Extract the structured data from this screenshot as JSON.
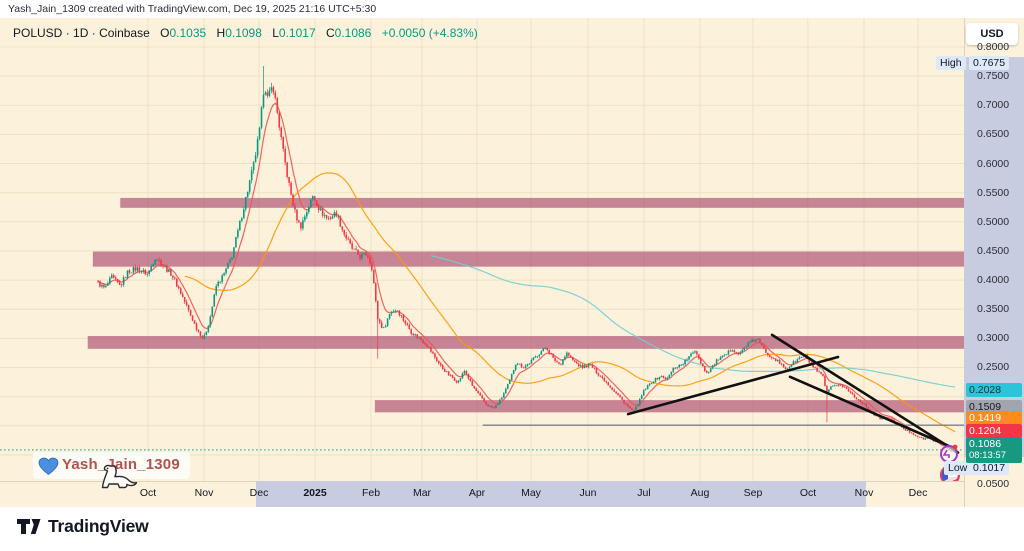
{
  "attribution": "Yash_Jain_1309 created with TradingView.com, Dec 19, 2025 21:16 UTC+5:30",
  "legend": {
    "symbol": "POLUSD",
    "dot": "·",
    "interval": "1D",
    "exchange": "Coinbase",
    "pairs": [
      {
        "k": "O",
        "v": "0.1035"
      },
      {
        "k": "H",
        "v": "0.1098"
      },
      {
        "k": "L",
        "v": "0.1017"
      },
      {
        "k": "C",
        "v": "0.1086"
      }
    ],
    "change": "+0.0050 (+4.83%)"
  },
  "currency_button": "USD",
  "price_axis": {
    "plain_ticks": [
      "0.8000",
      "0.7500",
      "0.7000",
      "0.6500",
      "0.6000",
      "0.5500",
      "0.5000",
      "0.4500",
      "0.4000",
      "0.3500",
      "0.3000",
      "0.2500",
      "0.0500"
    ],
    "high_badge": {
      "label": "High",
      "price": "0.7675"
    },
    "low_badge": {
      "label": "Low",
      "price": "0.1017"
    },
    "line_labels": [
      {
        "text": "0.2028",
        "bg": "#2bc4d9",
        "fg": "#07333a",
        "price": 0.2028
      },
      {
        "text": "0.1509",
        "bg": "#a2a5ad",
        "fg": "#16181d",
        "price": 0.1509
      },
      {
        "text": "0.1419",
        "bg": "#ff8c1a",
        "fg": "#ffffff",
        "price": 0.1419
      },
      {
        "text": "0.1204",
        "bg": "#f23645",
        "fg": "#ffffff",
        "price": 0.1204
      }
    ],
    "last_price_label": {
      "text": "0.1086",
      "countdown": "08:13:57",
      "bg": "#159980",
      "fg": "#ffffff",
      "price": 0.1086
    }
  },
  "watermark": "Yash_Jain_1309",
  "footer_logo": "TradingView",
  "chart_data": {
    "type": "candlestick",
    "symbol": "POLUSD",
    "timeframe": "1D",
    "exchange": "Coinbase",
    "ylim": [
      0.05,
      0.85
    ],
    "high": 0.7675,
    "low": 0.1017,
    "last_candle": {
      "open": 0.1035,
      "high": 0.1098,
      "low": 0.1017,
      "close": 0.1086
    },
    "months": [
      {
        "label": "Oct",
        "f": 0.0583
      },
      {
        "label": "Nov",
        "f": 0.1237
      },
      {
        "label": "Dec",
        "f": 0.1879
      },
      {
        "label": "2025",
        "f": 0.2532,
        "bold": true
      },
      {
        "label": "Feb",
        "f": 0.3185
      },
      {
        "label": "Mar",
        "f": 0.378
      },
      {
        "label": "Apr",
        "f": 0.4422
      },
      {
        "label": "May",
        "f": 0.5052
      },
      {
        "label": "Jun",
        "f": 0.5717
      },
      {
        "label": "Jul",
        "f": 0.6371
      },
      {
        "label": "Aug",
        "f": 0.7024
      },
      {
        "label": "Sep",
        "f": 0.7643
      },
      {
        "label": "Oct",
        "f": 0.8284
      },
      {
        "label": "Nov",
        "f": 0.8938
      },
      {
        "label": "Dec",
        "f": 0.9568
      }
    ],
    "close_keypoints": [
      [
        0.0,
        0.395
      ],
      [
        0.008,
        0.385
      ],
      [
        0.016,
        0.405
      ],
      [
        0.026,
        0.39
      ],
      [
        0.035,
        0.415
      ],
      [
        0.046,
        0.42
      ],
      [
        0.058,
        0.41
      ],
      [
        0.067,
        0.44
      ],
      [
        0.076,
        0.425
      ],
      [
        0.086,
        0.41
      ],
      [
        0.096,
        0.38
      ],
      [
        0.105,
        0.35
      ],
      [
        0.114,
        0.32
      ],
      [
        0.123,
        0.298
      ],
      [
        0.13,
        0.33
      ],
      [
        0.138,
        0.39
      ],
      [
        0.147,
        0.41
      ],
      [
        0.156,
        0.44
      ],
      [
        0.166,
        0.5
      ],
      [
        0.174,
        0.55
      ],
      [
        0.182,
        0.6
      ],
      [
        0.189,
        0.66
      ],
      [
        0.194,
        0.74
      ],
      [
        0.198,
        0.71
      ],
      [
        0.204,
        0.735
      ],
      [
        0.21,
        0.68
      ],
      [
        0.216,
        0.62
      ],
      [
        0.222,
        0.57
      ],
      [
        0.229,
        0.52
      ],
      [
        0.236,
        0.49
      ],
      [
        0.244,
        0.52
      ],
      [
        0.251,
        0.545
      ],
      [
        0.259,
        0.52
      ],
      [
        0.268,
        0.505
      ],
      [
        0.278,
        0.515
      ],
      [
        0.287,
        0.48
      ],
      [
        0.296,
        0.455
      ],
      [
        0.306,
        0.44
      ],
      [
        0.314,
        0.445
      ],
      [
        0.32,
        0.42
      ],
      [
        0.326,
        0.335
      ],
      [
        0.333,
        0.315
      ],
      [
        0.341,
        0.345
      ],
      [
        0.349,
        0.35
      ],
      [
        0.357,
        0.33
      ],
      [
        0.366,
        0.31
      ],
      [
        0.375,
        0.3
      ],
      [
        0.383,
        0.29
      ],
      [
        0.392,
        0.27
      ],
      [
        0.401,
        0.25
      ],
      [
        0.411,
        0.235
      ],
      [
        0.42,
        0.225
      ],
      [
        0.428,
        0.245
      ],
      [
        0.436,
        0.22
      ],
      [
        0.446,
        0.2
      ],
      [
        0.454,
        0.185
      ],
      [
        0.462,
        0.18
      ],
      [
        0.47,
        0.195
      ],
      [
        0.48,
        0.225
      ],
      [
        0.488,
        0.26
      ],
      [
        0.496,
        0.25
      ],
      [
        0.505,
        0.26
      ],
      [
        0.515,
        0.275
      ],
      [
        0.523,
        0.285
      ],
      [
        0.531,
        0.265
      ],
      [
        0.539,
        0.255
      ],
      [
        0.547,
        0.275
      ],
      [
        0.555,
        0.26
      ],
      [
        0.565,
        0.25
      ],
      [
        0.574,
        0.255
      ],
      [
        0.583,
        0.24
      ],
      [
        0.593,
        0.225
      ],
      [
        0.602,
        0.21
      ],
      [
        0.611,
        0.195
      ],
      [
        0.62,
        0.18
      ],
      [
        0.625,
        0.175
      ],
      [
        0.631,
        0.19
      ],
      [
        0.637,
        0.21
      ],
      [
        0.646,
        0.225
      ],
      [
        0.656,
        0.235
      ],
      [
        0.664,
        0.23
      ],
      [
        0.672,
        0.25
      ],
      [
        0.681,
        0.255
      ],
      [
        0.691,
        0.27
      ],
      [
        0.697,
        0.28
      ],
      [
        0.703,
        0.26
      ],
      [
        0.71,
        0.24
      ],
      [
        0.716,
        0.25
      ],
      [
        0.724,
        0.265
      ],
      [
        0.732,
        0.27
      ],
      [
        0.74,
        0.283
      ],
      [
        0.748,
        0.272
      ],
      [
        0.756,
        0.288
      ],
      [
        0.764,
        0.295
      ],
      [
        0.769,
        0.3
      ],
      [
        0.775,
        0.285
      ],
      [
        0.782,
        0.272
      ],
      [
        0.789,
        0.266
      ],
      [
        0.796,
        0.256
      ],
      [
        0.803,
        0.247
      ],
      [
        0.81,
        0.256
      ],
      [
        0.818,
        0.266
      ],
      [
        0.825,
        0.27
      ],
      [
        0.832,
        0.256
      ],
      [
        0.839,
        0.242
      ],
      [
        0.846,
        0.235
      ],
      [
        0.85,
        0.205
      ],
      [
        0.855,
        0.215
      ],
      [
        0.864,
        0.222
      ],
      [
        0.872,
        0.215
      ],
      [
        0.879,
        0.205
      ],
      [
        0.886,
        0.196
      ],
      [
        0.893,
        0.188
      ],
      [
        0.9,
        0.177
      ],
      [
        0.907,
        0.167
      ],
      [
        0.914,
        0.162
      ],
      [
        0.921,
        0.166
      ],
      [
        0.928,
        0.157
      ],
      [
        0.935,
        0.149
      ],
      [
        0.942,
        0.143
      ],
      [
        0.949,
        0.138
      ],
      [
        0.956,
        0.132
      ],
      [
        0.963,
        0.127
      ],
      [
        0.97,
        0.131
      ],
      [
        0.977,
        0.122
      ],
      [
        0.984,
        0.117
      ],
      [
        0.991,
        0.111
      ],
      [
        0.995,
        0.105
      ],
      [
        1.0,
        0.1086
      ]
    ],
    "wick_spikes": [
      {
        "f": 0.194,
        "high": 0.7675
      },
      {
        "f": 0.326,
        "low": 0.265
      },
      {
        "f": 0.85,
        "low": 0.156
      }
    ],
    "supply_zones": [
      {
        "p1": 0.524,
        "p2": 0.541,
        "f1": 0.026,
        "f2": 1.011
      },
      {
        "p1": 0.423,
        "p2": 0.449,
        "f1": -0.006,
        "f2": 1.011
      },
      {
        "p1": 0.282,
        "p2": 0.304,
        "f1": -0.012,
        "f2": 1.011
      },
      {
        "p1": 0.173,
        "p2": 0.194,
        "f1": 0.323,
        "f2": 1.011
      }
    ],
    "horizontal_line": {
      "price": 0.1509,
      "f1": 0.449,
      "f2": 1.011
    },
    "current_price_line": {
      "price": 0.1086
    },
    "trendlines": [
      {
        "f1": 0.6185,
        "p1": 0.17,
        "f2": 0.8635,
        "p2": 0.268
      },
      {
        "f1": 0.7865,
        "p1": 0.306,
        "f2": 1.0035,
        "p2": 0.104
      },
      {
        "f1": 0.8075,
        "p1": 0.234,
        "f2": 0.998,
        "p2": 0.112
      }
    ],
    "moving_averages": [
      {
        "name": "ema-fast",
        "period": 8,
        "color": "#ef5350",
        "current": 0.1204
      },
      {
        "name": "sma-mid",
        "period": 45,
        "color": "#ff9800",
        "current": 0.1419
      },
      {
        "name": "sma-slow",
        "period": 170,
        "color": "#74cdd0",
        "current": 0.2028
      }
    ],
    "colors": {
      "up": "#089981",
      "down": "#f23645",
      "zone": "rgba(166,64,104,0.62)",
      "trend": "#111111",
      "hline": "#7d818c",
      "bg": "#fcf2dc",
      "axis_highlight": "#c7cce1",
      "grid": "rgba(171,134,66,0.16)"
    }
  }
}
